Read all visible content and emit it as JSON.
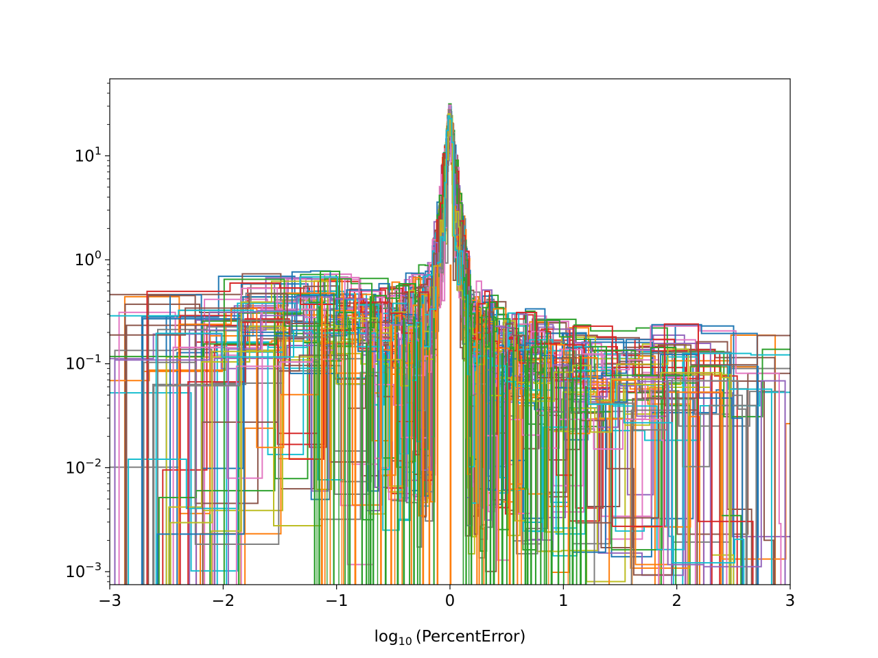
{
  "chart_data": {
    "type": "histogram-step",
    "title": "",
    "xlabel": {
      "base": "log",
      "sub": "10",
      "rest": "(PercentError)"
    },
    "ylabel": "",
    "yscale": "log",
    "xlim": [
      -3,
      3
    ],
    "ylim": [
      0.00075,
      55
    ],
    "xticks": [
      {
        "value": -3,
        "label": "−3"
      },
      {
        "value": -2,
        "label": "−2"
      },
      {
        "value": -1,
        "label": "−1"
      },
      {
        "value": 0,
        "label": "0"
      },
      {
        "value": 1,
        "label": "1"
      },
      {
        "value": 2,
        "label": "2"
      },
      {
        "value": 3,
        "label": "3"
      }
    ],
    "yticks": [
      {
        "value": 0.001,
        "base": "10",
        "exp": "−3"
      },
      {
        "value": 0.01,
        "base": "10",
        "exp": "−2"
      },
      {
        "value": 0.1,
        "base": "10",
        "exp": "−1"
      },
      {
        "value": 1,
        "base": "10",
        "exp": "0"
      },
      {
        "value": 10,
        "base": "10",
        "exp": "1"
      }
    ],
    "grid": false,
    "legend": "none",
    "colors": [
      "#1f77b4",
      "#ff7f0e",
      "#2ca02c",
      "#d62728",
      "#9467bd",
      "#8c564b",
      "#e377c2",
      "#7f7f7f",
      "#bcbd22",
      "#17becf"
    ],
    "series_count": 60,
    "peak": {
      "x": 0,
      "y": 32
    },
    "shoulder_levels": [
      {
        "x": -3.0,
        "y": 0.35
      },
      {
        "x": -2.5,
        "y": 0.6
      },
      {
        "x": -2.0,
        "y": 0.42
      },
      {
        "x": -1.6,
        "y": 0.85
      },
      {
        "x": -1.0,
        "y": 0.7
      },
      {
        "x": -0.5,
        "y": 0.55
      },
      {
        "x": -0.15,
        "y": 0.8
      },
      {
        "x": 0.15,
        "y": 0.6
      },
      {
        "x": 0.5,
        "y": 0.35
      },
      {
        "x": 1.0,
        "y": 0.25
      },
      {
        "x": 1.6,
        "y": 0.15
      },
      {
        "x": 2.0,
        "y": 0.22
      },
      {
        "x": 2.5,
        "y": 0.2
      },
      {
        "x": 3.0,
        "y": 0.24
      }
    ]
  }
}
